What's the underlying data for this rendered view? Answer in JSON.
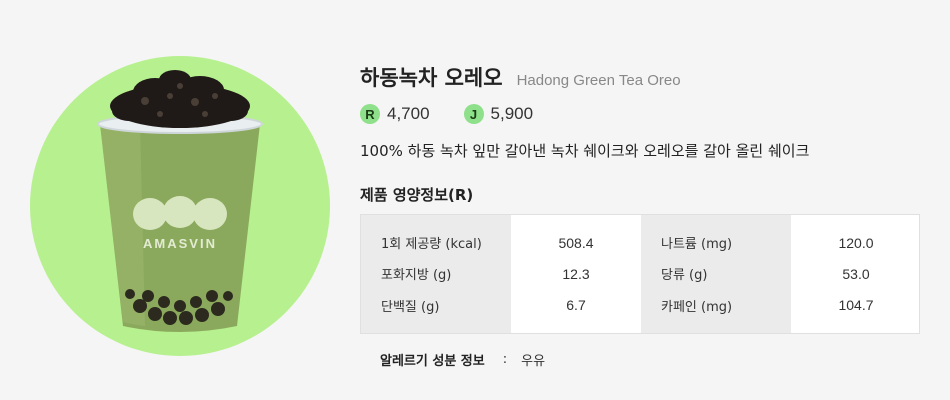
{
  "product": {
    "name_ko": "하동녹차 오레오",
    "name_en": "Hadong Green Tea Oreo",
    "description": "100% 하동 녹차 잎만 갈아낸 녹차 쉐이크와 오레오를 갈아 올린 쉐이크",
    "cup_logo": "AMASVIN",
    "image_icon": "green-tea-oreo-drink"
  },
  "prices": [
    {
      "size": "R",
      "value": "4,700"
    },
    {
      "size": "J",
      "value": "5,900"
    }
  ],
  "nutrition": {
    "title": "제품 영양정보(R)",
    "rows": [
      {
        "label_left": "1회 제공량 (kcal)",
        "value_left": "508.4",
        "label_right": "나트륨 (mg)",
        "value_right": "120.0"
      },
      {
        "label_left": "포화지방 (g)",
        "value_left": "12.3",
        "label_right": "당류 (g)",
        "value_right": "53.0"
      },
      {
        "label_left": "단백질 (g)",
        "value_left": "6.7",
        "label_right": "카페인 (mg)",
        "value_right": "104.7"
      }
    ]
  },
  "allergy": {
    "label": "알레르기 성분 정보",
    "separator": ":",
    "value": "우유"
  },
  "colors": {
    "image_circle": "#b7f08f",
    "drink_green": "#8aa65a",
    "badge": "#8ee08a"
  }
}
